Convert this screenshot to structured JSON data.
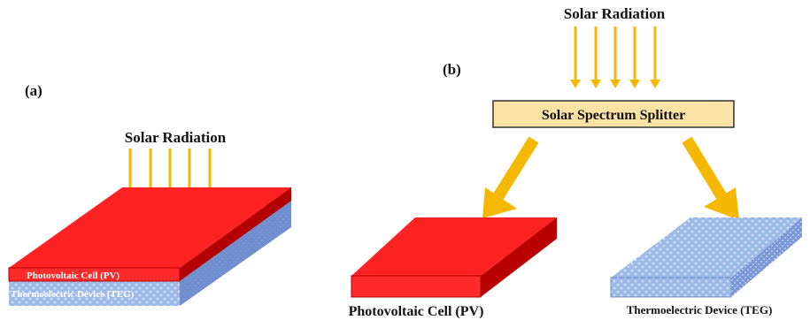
{
  "panel_a": {
    "label": "(a)",
    "radiation_label": "Solar Radiation",
    "pv_label": "Photovoltaic Cell (PV)",
    "teg_label": "Thermoelectric Device (TEG)"
  },
  "panel_b": {
    "label": "(b)",
    "radiation_label": "Solar Radiation",
    "splitter_label": "Solar Spectrum Splitter",
    "pv_label": "Photovoltaic Cell (PV)",
    "teg_label": "Thermoelectric Device (TEG)"
  },
  "colors": {
    "arrow": "#f5b800",
    "arrow_dark": "#d99a00",
    "pv_red": "#ff2a2a",
    "pv_red_dark": "#b30000",
    "teg_blue": "#8fb0e6",
    "teg_blue_dark": "#5a78b8",
    "splitter_fill": "#fbe3a6"
  }
}
